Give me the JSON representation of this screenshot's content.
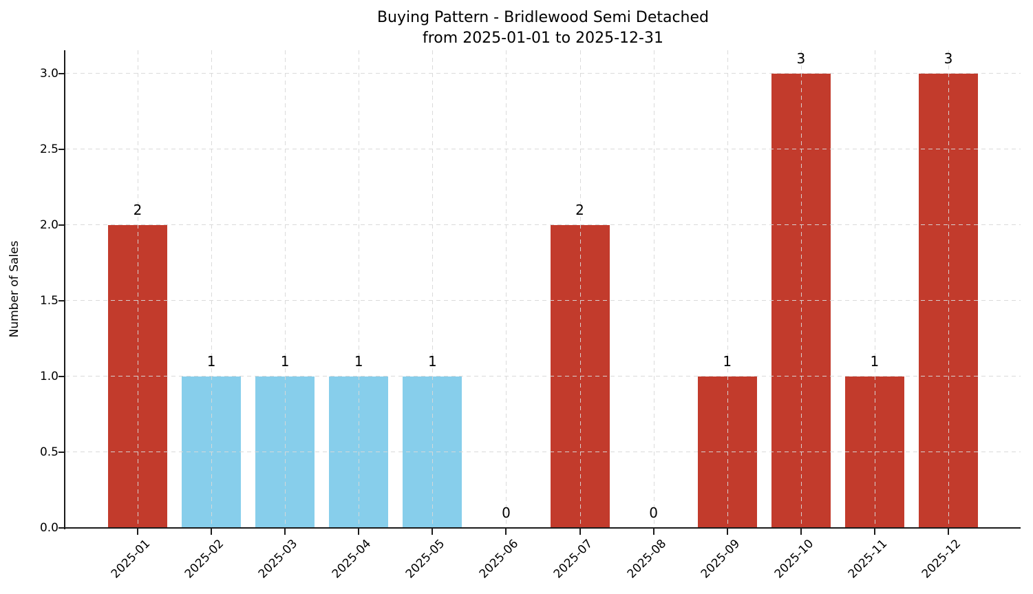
{
  "chart_data": {
    "type": "bar",
    "title": "Buying Pattern - Bridlewood Semi Detached",
    "subtitle": "from 2025-01-01 to 2025-12-31",
    "xlabel": "",
    "ylabel": "Number of Sales",
    "categories": [
      "2025-01",
      "2025-02",
      "2025-03",
      "2025-04",
      "2025-05",
      "2025-06",
      "2025-07",
      "2025-08",
      "2025-09",
      "2025-10",
      "2025-11",
      "2025-12"
    ],
    "values": [
      2,
      1,
      1,
      1,
      1,
      0,
      2,
      0,
      1,
      3,
      1,
      3
    ],
    "value_labels": [
      "2",
      "1",
      "1",
      "1",
      "1",
      "0",
      "2",
      "0",
      "1",
      "3",
      "1",
      "3"
    ],
    "bar_colors": [
      "#c23b2c",
      "#87ceeb",
      "#87ceeb",
      "#87ceeb",
      "#87ceeb",
      "#c23b2c",
      "#c23b2c",
      "#c23b2c",
      "#c23b2c",
      "#c23b2c",
      "#c23b2c",
      "#c23b2c"
    ],
    "yticks": [
      "0.0",
      "0.5",
      "1.0",
      "1.5",
      "2.0",
      "2.5",
      "3.0"
    ],
    "ylim": [
      0,
      3.15
    ],
    "grid": true,
    "grid_style": "dashed",
    "legend_position": "none"
  },
  "style": {
    "bar_red": "#c23b2c",
    "bar_blue": "#87ceeb",
    "grid_color": "#d8d8d8",
    "axis_color": "#1a1a1a",
    "text_color": "#000000",
    "background": "#ffffff"
  }
}
